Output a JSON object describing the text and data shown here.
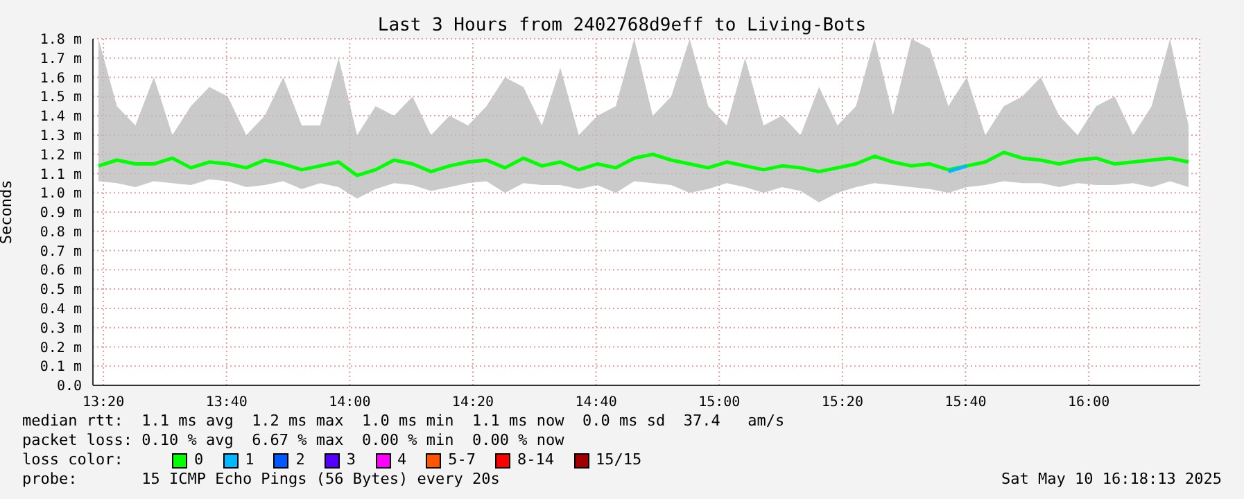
{
  "chart_data": {
    "type": "line",
    "title": "Last 3 Hours from 2402768d9eff to Living-Bots",
    "ylabel": "Seconds",
    "legend_title": "loss color:",
    "legend": "bottom",
    "grid": true,
    "marker": "none",
    "line_style": "solid",
    "xlim": [
      13.305,
      16.3
    ],
    "xticks": [
      {
        "value": 13.3333,
        "label": "13:20"
      },
      {
        "value": 13.6667,
        "label": "13:40"
      },
      {
        "value": 14,
        "label": "14:00"
      },
      {
        "value": 14.3333,
        "label": "14:20"
      },
      {
        "value": 14.6667,
        "label": "14:40"
      },
      {
        "value": 15,
        "label": "15:00"
      },
      {
        "value": 15.3333,
        "label": "15:20"
      },
      {
        "value": 15.6667,
        "label": "15:40"
      },
      {
        "value": 16,
        "label": "16:00"
      }
    ],
    "ylim": [
      0,
      1.8
    ],
    "yticks": [
      {
        "value": 0,
        "label": "0.0"
      },
      {
        "value": 0.1,
        "label": "0.1 m"
      },
      {
        "value": 0.2,
        "label": "0.2 m"
      },
      {
        "value": 0.3,
        "label": "0.3 m"
      },
      {
        "value": 0.4,
        "label": "0.4 m"
      },
      {
        "value": 0.5,
        "label": "0.5 m"
      },
      {
        "value": 0.6,
        "label": "0.6 m"
      },
      {
        "value": 0.7,
        "label": "0.7 m"
      },
      {
        "value": 0.8,
        "label": "0.8 m"
      },
      {
        "value": 0.9,
        "label": "0.9 m"
      },
      {
        "value": 1,
        "label": "1.0 m"
      },
      {
        "value": 1.1,
        "label": "1.1 m"
      },
      {
        "value": 1.2,
        "label": "1.2 m"
      },
      {
        "value": 1.3,
        "label": "1.3 m"
      },
      {
        "value": 1.4,
        "label": "1.4 m"
      },
      {
        "value": 1.5,
        "label": "1.5 m"
      },
      {
        "value": 1.6,
        "label": "1.6 m"
      },
      {
        "value": 1.7,
        "label": "1.7 m"
      },
      {
        "value": 1.8,
        "label": "1.8 m"
      }
    ],
    "x": [
      13.32,
      13.37,
      13.42,
      13.47,
      13.52,
      13.57,
      13.62,
      13.67,
      13.72,
      13.77,
      13.82,
      13.87,
      13.92,
      13.97,
      14.02,
      14.07,
      14.12,
      14.17,
      14.22,
      14.27,
      14.32,
      14.37,
      14.42,
      14.47,
      14.52,
      14.57,
      14.62,
      14.67,
      14.72,
      14.77,
      14.82,
      14.87,
      14.92,
      14.97,
      15.02,
      15.07,
      15.12,
      15.17,
      15.22,
      15.27,
      15.32,
      15.37,
      15.42,
      15.47,
      15.52,
      15.57,
      15.62,
      15.67,
      15.72,
      15.77,
      15.82,
      15.87,
      15.92,
      15.97,
      16.02,
      16.07,
      16.12,
      16.17,
      16.22,
      16.27
    ],
    "series": [
      {
        "name": "0",
        "color": "#00ff00",
        "values": [
          1.14,
          1.17,
          1.15,
          1.15,
          1.18,
          1.13,
          1.16,
          1.15,
          1.13,
          1.17,
          1.15,
          1.12,
          1.14,
          1.16,
          1.09,
          1.12,
          1.17,
          1.15,
          1.11,
          1.14,
          1.16,
          1.17,
          1.13,
          1.18,
          1.14,
          1.16,
          1.12,
          1.15,
          1.13,
          1.18,
          1.2,
          1.17,
          1.15,
          1.13,
          1.16,
          1.14,
          1.12,
          1.14,
          1.13,
          1.11,
          1.13,
          1.15,
          1.19,
          1.16,
          1.14,
          1.15,
          1.12,
          1.14,
          1.16,
          1.21,
          1.18,
          1.17,
          1.15,
          1.17,
          1.18,
          1.15,
          1.16,
          1.17,
          1.18,
          1.16
        ],
        "lower": [
          1.06,
          1.05,
          1.03,
          1.06,
          1.05,
          1.04,
          1.07,
          1.06,
          1.03,
          1.04,
          1.06,
          1.02,
          1.05,
          1.03,
          0.97,
          1.02,
          1.05,
          1.04,
          1.01,
          1.03,
          1.05,
          1.06,
          1.0,
          1.05,
          1.04,
          1.04,
          1.02,
          1.04,
          1.0,
          1.06,
          1.05,
          1.04,
          1.0,
          1.02,
          1.05,
          1.03,
          1.0,
          1.03,
          1.01,
          0.95,
          1.0,
          1.03,
          1.05,
          1.04,
          1.03,
          1.02,
          1.0,
          1.03,
          1.04,
          1.06,
          1.05,
          1.05,
          1.03,
          1.05,
          1.04,
          1.04,
          1.05,
          1.03,
          1.06,
          1.03
        ],
        "upper": [
          1.8,
          1.45,
          1.35,
          1.6,
          1.3,
          1.45,
          1.55,
          1.5,
          1.3,
          1.4,
          1.6,
          1.35,
          1.35,
          1.7,
          1.3,
          1.45,
          1.4,
          1.5,
          1.3,
          1.4,
          1.35,
          1.45,
          1.6,
          1.55,
          1.35,
          1.65,
          1.3,
          1.4,
          1.45,
          1.8,
          1.4,
          1.5,
          1.8,
          1.45,
          1.35,
          1.7,
          1.35,
          1.4,
          1.3,
          1.55,
          1.35,
          1.45,
          1.8,
          1.4,
          1.8,
          1.75,
          1.45,
          1.6,
          1.3,
          1.45,
          1.5,
          1.6,
          1.4,
          1.3,
          1.45,
          1.5,
          1.3,
          1.45,
          1.8,
          1.35
        ]
      },
      {
        "name": "1",
        "color": "#00b8ff",
        "values": [
          null,
          null,
          null,
          null,
          null,
          null,
          null,
          null,
          null,
          null,
          null,
          null,
          null,
          null,
          null,
          null,
          null,
          null,
          null,
          null,
          null,
          null,
          null,
          null,
          null,
          null,
          null,
          null,
          null,
          null,
          null,
          null,
          null,
          null,
          null,
          null,
          null,
          null,
          null,
          null,
          null,
          null,
          null,
          null,
          null,
          null,
          1.11,
          1.14,
          null,
          null,
          null,
          null,
          null,
          null,
          null,
          null,
          null,
          null,
          null,
          null
        ]
      },
      {
        "name": "2",
        "color": "#0059ff",
        "values": [
          null,
          null,
          null,
          null,
          null,
          null,
          null,
          null,
          null,
          null,
          null,
          null,
          null,
          null,
          null,
          null,
          null,
          null,
          null,
          null,
          null,
          null,
          null,
          null,
          null,
          null,
          null,
          null,
          null,
          null,
          null,
          null,
          null,
          null,
          null,
          null,
          null,
          null,
          null,
          null,
          null,
          null,
          null,
          null,
          null,
          null,
          null,
          null,
          null,
          null,
          null,
          null,
          null,
          null,
          null,
          null,
          null,
          null,
          null,
          null
        ]
      },
      {
        "name": "3",
        "color": "#5500ff",
        "values": [
          null,
          null,
          null,
          null,
          null,
          null,
          null,
          null,
          null,
          null,
          null,
          null,
          null,
          null,
          null,
          null,
          null,
          null,
          null,
          null,
          null,
          null,
          null,
          null,
          null,
          null,
          null,
          null,
          null,
          null,
          null,
          null,
          null,
          null,
          null,
          null,
          null,
          null,
          null,
          null,
          null,
          null,
          null,
          null,
          null,
          null,
          null,
          null,
          null,
          null,
          null,
          null,
          null,
          null,
          null,
          null,
          null,
          null,
          null,
          null
        ]
      },
      {
        "name": "4",
        "color": "#ff00ff",
        "values": [
          null,
          null,
          null,
          null,
          null,
          null,
          null,
          null,
          null,
          null,
          null,
          null,
          null,
          null,
          null,
          null,
          null,
          null,
          null,
          null,
          null,
          null,
          null,
          null,
          null,
          null,
          null,
          null,
          null,
          null,
          null,
          null,
          null,
          null,
          null,
          null,
          null,
          null,
          null,
          null,
          null,
          null,
          null,
          null,
          null,
          null,
          null,
          null,
          null,
          null,
          null,
          null,
          null,
          null,
          null,
          null,
          null,
          null,
          null,
          null
        ]
      },
      {
        "name": "5-7",
        "color": "#ff5500",
        "values": [
          null,
          null,
          null,
          null,
          null,
          null,
          null,
          null,
          null,
          null,
          null,
          null,
          null,
          null,
          null,
          null,
          null,
          null,
          null,
          null,
          null,
          null,
          null,
          null,
          null,
          null,
          null,
          null,
          null,
          null,
          null,
          null,
          null,
          null,
          null,
          null,
          null,
          null,
          null,
          null,
          null,
          null,
          null,
          null,
          null,
          null,
          null,
          null,
          null,
          null,
          null,
          null,
          null,
          null,
          null,
          null,
          null,
          null,
          null,
          null
        ]
      },
      {
        "name": "8-14",
        "color": "#ff0000",
        "values": [
          null,
          null,
          null,
          null,
          null,
          null,
          null,
          null,
          null,
          null,
          null,
          null,
          null,
          null,
          null,
          null,
          null,
          null,
          null,
          null,
          null,
          null,
          null,
          null,
          null,
          null,
          null,
          null,
          null,
          null,
          null,
          null,
          null,
          null,
          null,
          null,
          null,
          null,
          null,
          null,
          null,
          null,
          null,
          null,
          null,
          null,
          null,
          null,
          null,
          null,
          null,
          null,
          null,
          null,
          null,
          null,
          null,
          null,
          null,
          null
        ]
      },
      {
        "name": "15/15",
        "color": "#a10000",
        "values": [
          null,
          null,
          null,
          null,
          null,
          null,
          null,
          null,
          null,
          null,
          null,
          null,
          null,
          null,
          null,
          null,
          null,
          null,
          null,
          null,
          null,
          null,
          null,
          null,
          null,
          null,
          null,
          null,
          null,
          null,
          null,
          null,
          null,
          null,
          null,
          null,
          null,
          null,
          null,
          null,
          null,
          null,
          null,
          null,
          null,
          null,
          null,
          null,
          null,
          null,
          null,
          null,
          null,
          null,
          null,
          null,
          null,
          null,
          null,
          null
        ]
      }
    ],
    "annotations": [
      "median rtt:  1.1 ms avg  1.2 ms max  1.0 ms min  1.1 ms now  0.0 ms sd  37.4   am/s",
      "packet loss: 0.10 % avg  6.67 % max  0.00 % min  0.00 % now",
      "probe:       15 ICMP Echo Pings (56 Bytes) every 20s",
      "Sat May 10 16:18:13 2025"
    ]
  }
}
